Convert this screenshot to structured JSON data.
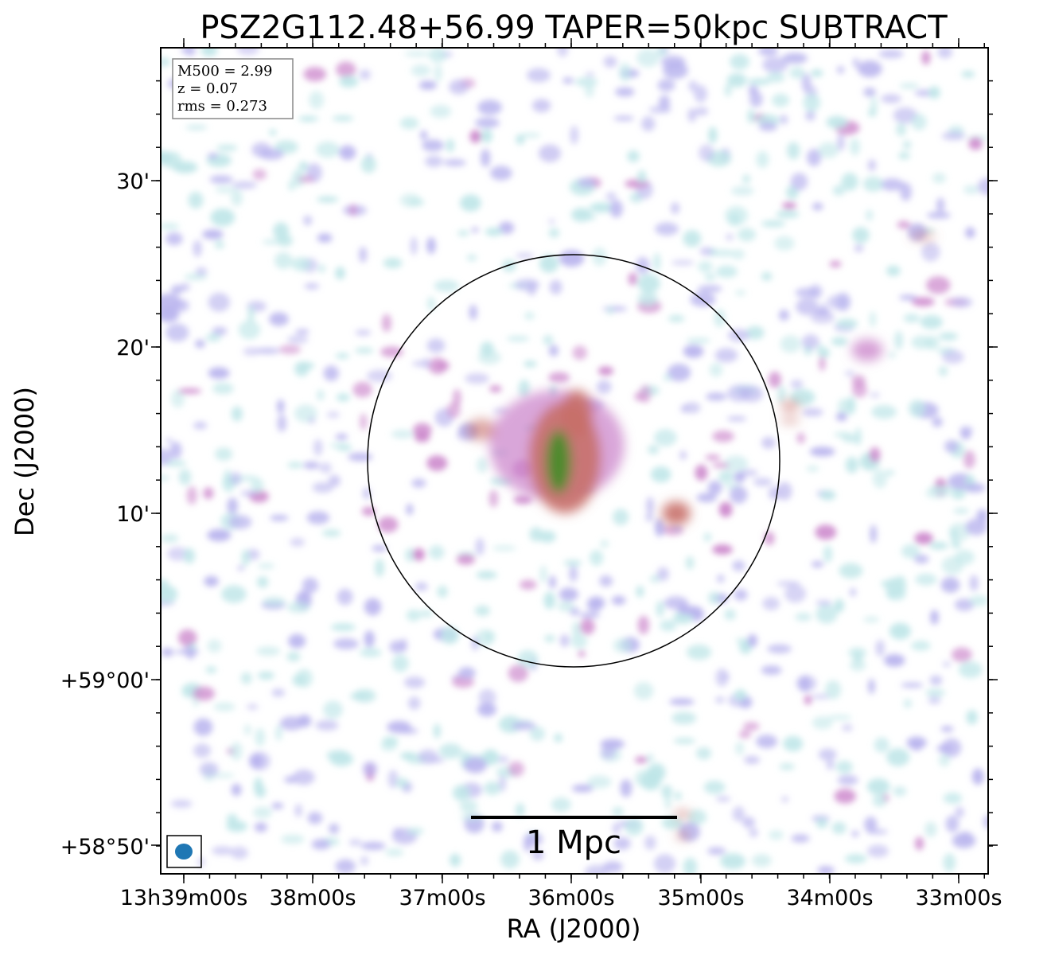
{
  "title": "PSZ2G112.48+56.99 TAPER=50kpc SUBTRACT",
  "info_box": {
    "line1": "M500 = 2.99",
    "line2": "z = 0.07",
    "line3": "rms = 0.273"
  },
  "axes": {
    "xlabel": "RA (J2000)",
    "ylabel": "Dec (J2000)",
    "x_ticks": [
      "13h39m00s",
      "38m00s",
      "37m00s",
      "36m00s",
      "35m00s",
      "34m00s",
      "33m00s"
    ],
    "y_ticks": [
      "30'",
      "20'",
      "10'",
      "+59°00'",
      "+58°50'"
    ]
  },
  "scale_bar": {
    "label": "1 Mpc"
  },
  "colors": {
    "frame": "#000000",
    "beam": "#1f77b4",
    "noise_cyan": "#bfe6e8",
    "noise_purple": "#b9b4ee",
    "noise_magenta": "#cc88cc",
    "emission_red": "#c8706a",
    "emission_green": "#4f8a2e"
  }
}
